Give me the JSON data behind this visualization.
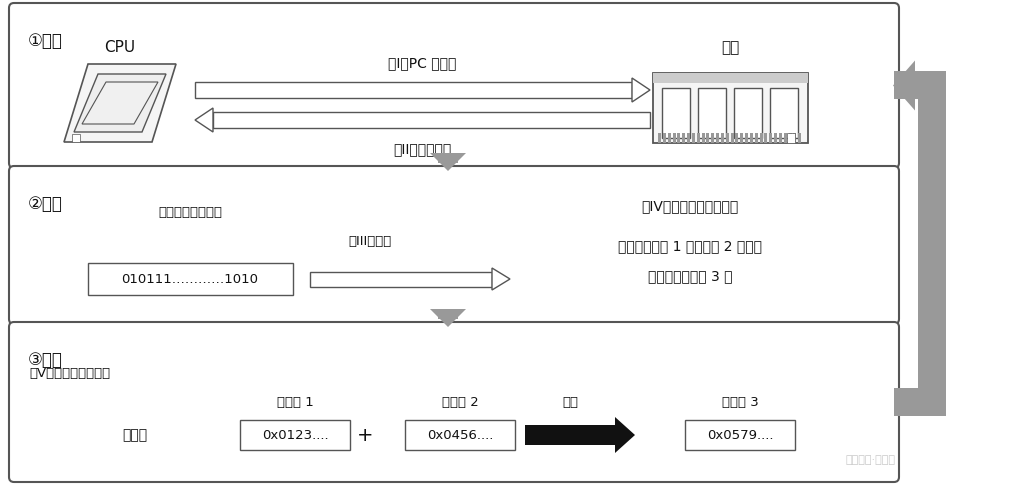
{
  "bg_color": "#ffffff",
  "border_color": "#555555",
  "box1": {
    "label": "①读取",
    "cpu_label": "CPU",
    "mem_label": "内存",
    "arrow1_label": "［I］PC 的输出",
    "arrow2_label": "［II］读取指令"
  },
  "box2": {
    "label": "②解码",
    "inst_label": "指令（机器语言）",
    "inst_value": "010111…………1010",
    "decode_label": "［III］解码",
    "result_label1": "［IV］确定要执行的操作",
    "result_label2": "（例）寄存器 1 和寄存器 2 相加，",
    "result_label3": "结果放入寄存器 3 中"
  },
  "box3": {
    "label": "③执行",
    "op_label": "［V］执行实际的操作",
    "reg1_label": "寄存器 1",
    "reg1_val": "0x0123....",
    "reg2_label": "寄存器 2",
    "reg2_val": "0x0456....",
    "reg3_label": "寄存器 3",
    "reg3_val": "0x0579....",
    "plus": "+",
    "dai_ru": "代入"
  },
  "arrow_gray": "#919191",
  "text_color": "#111111",
  "watermark": "知识库下·溢指令"
}
